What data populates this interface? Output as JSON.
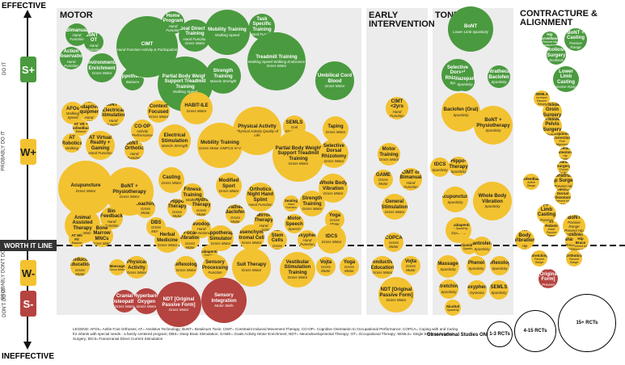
{
  "axis": {
    "top_label": "EFFECTIVE",
    "bottom_label": "INEFFECTIVE"
  },
  "zones": [
    {
      "tag": "S+",
      "label": "DO IT",
      "color": "#4a9a3f"
    },
    {
      "tag": "W+",
      "label": "PROBABLY DO IT",
      "color": "#f3c230"
    },
    {
      "tag": "W-",
      "label": "PROBABLY DON'T DO IT",
      "color": "#f3c230"
    },
    {
      "tag": "S-",
      "label": "DON'T DO IT",
      "color": "#b5433f"
    }
  ],
  "worth_it_line": "WORTH IT LINE",
  "sections": {
    "motor": "MOTOR",
    "early": "EARLY INTERVENTION",
    "tone": "TONE",
    "contracture": "CONTRACTURE & ALIGNMENT"
  },
  "motor_bubbles": [
    {
      "name": "Bimanual",
      "sub": "Hand Function",
      "c": "g"
    },
    {
      "name": "BoNT + OT",
      "sub": "Hand Function",
      "c": "g"
    },
    {
      "name": "Action Observation",
      "sub": "Hand Function",
      "c": "g"
    },
    {
      "name": "Environmental Enrichment",
      "sub": "Gross Motor",
      "c": "g"
    },
    {
      "name": "Hippotherapy",
      "sub": "Balance",
      "c": "g"
    },
    {
      "name": "CIMT",
      "sub": "Hand Function Activity & Participation",
      "c": "g"
    },
    {
      "name": "Home Program",
      "sub": "Hand Function",
      "c": "g"
    },
    {
      "name": "Goal Directed Training",
      "sub": "Hand Function Gross Motor",
      "c": "g"
    },
    {
      "name": "Mobility Training",
      "sub": "Walking Speed",
      "c": "g"
    },
    {
      "name": "Task Specific Training",
      "sub": "Hand Function",
      "c": "g"
    },
    {
      "name": "Partial Body Weight Support Treadmill Training",
      "sub": "Walking Speed",
      "c": "g"
    },
    {
      "name": "Strength Training",
      "sub": "Muscle Strength",
      "c": "g"
    },
    {
      "name": "Treadmill Training",
      "sub": "Walking Speed Walking Endurance Gross Motor",
      "c": "g"
    },
    {
      "name": "Umbilical Cord Blood",
      "sub": "Gross Motor",
      "c": "g"
    },
    {
      "name": "AFOs",
      "sub": "Walking Speed",
      "c": "y"
    },
    {
      "name": "AT Adaptive Equipment",
      "sub": "Hand Function",
      "c": "y"
    },
    {
      "name": "AT VR + Biofeedback",
      "sub": "Balance",
      "c": "y"
    },
    {
      "name": "BoNT + Electrical Stimulation",
      "sub": "Hand Function",
      "c": "y"
    },
    {
      "name": "Context Focused",
      "sub": "Gross Motor",
      "c": "y"
    },
    {
      "name": "HABIT-ILE",
      "sub": "Gross Motor",
      "c": "y"
    },
    {
      "name": "Physical Activity",
      "sub": "Physical Activity Quality of Life",
      "c": "y"
    },
    {
      "name": "SEMLS",
      "sub": "Gait Kinematics",
      "c": "y"
    },
    {
      "name": "Taping",
      "sub": "Gross Motor",
      "c": "y"
    },
    {
      "name": "AT Robotics",
      "sub": "Walking",
      "c": "y"
    },
    {
      "name": "AT Virtual Reality + Gaming",
      "sub": "Hand Function",
      "c": "y"
    },
    {
      "name": "CO-OP",
      "sub": "Activity Performance",
      "c": "y"
    },
    {
      "name": "Electrical Stimulation",
      "sub": "Muscle Strength",
      "c": "y"
    },
    {
      "name": "Mobility Training",
      "sub": "Gross Motor GMFCS IV-V",
      "c": "y"
    },
    {
      "name": "Partial Body Weight Support Treadmill Training",
      "sub": "Gross Motor",
      "c": "y"
    },
    {
      "name": "Selective Dorsal Rhizotomy",
      "sub": "Gross Motor",
      "c": "y"
    },
    {
      "name": "BoNT + Orthotic",
      "sub": "Hand Function",
      "c": "y"
    },
    {
      "name": "Acupuncture",
      "sub": "Gross Motor",
      "c": "y"
    },
    {
      "name": "BoNT + Physiotherapy",
      "sub": "Gross Motor",
      "c": "y"
    },
    {
      "name": "Casting",
      "sub": "Gross Motor",
      "c": "y"
    },
    {
      "name": "Fitness Training",
      "sub": "Walking",
      "c": "y"
    },
    {
      "name": "Modified Sport",
      "sub": "Gross Motor",
      "c": "y"
    },
    {
      "name": "Orthotics Night Hand Splint",
      "sub": "Hand Function",
      "c": "y"
    },
    {
      "name": "Whole Body Vibration",
      "sub": "Gross Motor",
      "c": "y"
    },
    {
      "name": "Coaching",
      "sub": "Gross Motor",
      "c": "y"
    },
    {
      "name": "Hippo Therapy",
      "sub": "Gross Motor",
      "c": "y"
    },
    {
      "name": "Hydro Therapy",
      "sub": "Gross Motor",
      "c": "y"
    },
    {
      "name": "Intrathecal Baclofen",
      "sub": "Gross Motor",
      "c": "y"
    },
    {
      "name": "Seating",
      "sub": "Hand Function",
      "c": "y"
    },
    {
      "name": "Strength Training",
      "sub": "Gross Motor",
      "c": "y"
    },
    {
      "name": "Yoga",
      "sub": "Gross Motor",
      "c": "y"
    },
    {
      "name": "Animal Assisted Therapy",
      "sub": "Gross Motor",
      "c": "y"
    },
    {
      "name": "Bio Feedback",
      "sub": "Hand Function",
      "c": "y"
    },
    {
      "name": "DBS",
      "sub": "Gross Motor",
      "c": "y"
    },
    {
      "name": "Levodopa",
      "sub": "Hand Function",
      "c": "y"
    },
    {
      "name": "Mirror Therapy",
      "sub": "Hand Function",
      "c": "y"
    },
    {
      "name": "Motor Speech",
      "sub": "Speech",
      "c": "y"
    },
    {
      "name": "tDCS",
      "sub": "Gross Motor",
      "c": "y"
    },
    {
      "name": "Herbal Medicine",
      "sub": "Gross Motor",
      "c": "y"
    },
    {
      "name": "Focal Vibration",
      "sub": "Gross Motor",
      "c": "y"
    },
    {
      "name": "AT Wii Fit",
      "sub": "Balance",
      "c": "y"
    },
    {
      "name": "Bone Marrow MNCs",
      "sub": "Gross Motor",
      "c": "y"
    },
    {
      "name": "Hippotherapy Simulator",
      "sub": "Gross Motor",
      "c": "y"
    },
    {
      "name": "Mesenchymal Stromal Cells",
      "sub": "Gross Motor",
      "c": "y"
    },
    {
      "name": "Neural Stem Cells",
      "sub": "Gross Motor",
      "c": "y"
    },
    {
      "name": "Trihexyphenidyl",
      "sub": "Hand Function",
      "c": "y"
    },
    {
      "name": "Gabapentin",
      "sub": "Function",
      "c": "y"
    },
    {
      "name": "Conductive Education",
      "sub": "Gross Motor",
      "c": "y"
    },
    {
      "name": "Massage",
      "sub": "Gross Motor",
      "c": "y"
    },
    {
      "name": "Physical Activity",
      "sub": "Gross Motor",
      "c": "y"
    },
    {
      "name": "Reflexology",
      "sub": "Gross Motor",
      "c": "y"
    },
    {
      "name": "Sensory Processing",
      "sub": "Function",
      "c": "y"
    },
    {
      "name": "Suit Therapy",
      "sub": "Gross Motor",
      "c": "y"
    },
    {
      "name": "Vestibular Stimulation Training",
      "sub": "Gross Motor",
      "c": "y"
    },
    {
      "name": "Vojta",
      "sub": "Gross Motor",
      "c": "y"
    },
    {
      "name": "Yoga",
      "sub": "Gross Motor",
      "c": "y"
    },
    {
      "name": "Cranial Osteopathy",
      "sub": "Gross Motor",
      "c": "r"
    },
    {
      "name": "Hyperbaric Oxygen",
      "sub": "Gross Motor",
      "c": "r"
    },
    {
      "name": "NDT [Original Passive Form]",
      "sub": "Gross Motor",
      "c": "r"
    },
    {
      "name": "Sensory Integration",
      "sub": "Motor Skills",
      "c": "r"
    }
  ],
  "early_bubbles": [
    {
      "name": "CIMT <2yrs",
      "sub": "Hand Function",
      "c": "y"
    },
    {
      "name": "Motor Training",
      "sub": "Gross Motor",
      "c": "y"
    },
    {
      "name": "GAME",
      "sub": "Gross Motor",
      "c": "y"
    },
    {
      "name": "CIMT or Bimanual",
      "sub": "Hand Function",
      "c": "y"
    },
    {
      "name": "General Stimulation",
      "sub": "Gross Motor",
      "c": "y"
    },
    {
      "name": "COPCA",
      "sub": "Gross Motor",
      "c": "y"
    },
    {
      "name": "Conductive Education",
      "sub": "Gross Motor",
      "c": "y"
    },
    {
      "name": "Vojta",
      "sub": "Gross Motor",
      "c": "y"
    },
    {
      "name": "NDT [Original Passive Form]",
      "sub": "Gross Motor",
      "c": "y"
    }
  ],
  "tone_bubbles": [
    {
      "name": "BoNT",
      "sub": "Lower Limb Spasticity",
      "c": "g"
    },
    {
      "name": "Selective Dorsal Rhizotomy",
      "sub": "Spasticity",
      "c": "g"
    },
    {
      "name": "Diazepam",
      "sub": "Spasticity",
      "c": "g"
    },
    {
      "name": "Intrathecal Baclofen",
      "sub": "Spasticity",
      "c": "g"
    },
    {
      "name": "Baclofen (Oral)",
      "sub": "Spasticity",
      "c": "y"
    },
    {
      "name": "BoNT + Physiotherapy",
      "sub": "Spasticity",
      "c": "y"
    },
    {
      "name": "tDCS",
      "sub": "Spasticity",
      "c": "y"
    },
    {
      "name": "Hippo-Therapy",
      "sub": "Spasticity",
      "c": "y"
    },
    {
      "name": "Acupuncture",
      "sub": "Spasticity",
      "c": "y"
    },
    {
      "name": "Whole Body Vibration",
      "sub": "Spasticity",
      "c": "y"
    },
    {
      "name": "DBS",
      "sub": "Dystonia",
      "c": "y"
    },
    {
      "name": "Gabapentin",
      "sub": "Spasticity",
      "c": "y"
    },
    {
      "name": "Tizanidine",
      "sub": "Spasticity",
      "c": "y"
    },
    {
      "name": "Dantrolene",
      "sub": "Spasticity",
      "c": "y"
    },
    {
      "name": "Massage",
      "sub": "Spasticity",
      "c": "y"
    },
    {
      "name": "Phenol",
      "sub": "Spasticity",
      "c": "y"
    },
    {
      "name": "Reflexology",
      "sub": "Spasticity",
      "c": "y"
    },
    {
      "name": "Stretching",
      "sub": "Spasticity",
      "c": "y"
    },
    {
      "name": "Trihexyphenidyl",
      "sub": "Dystonia",
      "c": "y"
    },
    {
      "name": "SEMLS",
      "sub": "Spasticity",
      "c": "y"
    },
    {
      "name": "Alcohol",
      "sub": "Spasticity",
      "c": "y"
    }
  ],
  "contracture_bubbles": [
    {
      "name": "Hip Surveillance",
      "sub": "Prevent Hip Displacement",
      "c": "g"
    },
    {
      "name": "BoNT + Casting",
      "sub": "Passive Range",
      "c": "g"
    },
    {
      "name": "Scoliosis Surgery",
      "sub": "Scoliosis",
      "c": "g"
    },
    {
      "name": "Lower Limb Casting",
      "sub": "Passive Range",
      "c": "g"
    },
    {
      "name": "SEMLS",
      "sub": "Increase Passive Range",
      "c": "y"
    },
    {
      "name": "Soft Tissue Groin Surgery",
      "sub": "Prevent Hip Displacement",
      "c": "y"
    },
    {
      "name": "Soft Tissue Pelvis Surgery",
      "sub": "Prevent Hip Displacement",
      "c": "y"
    },
    {
      "name": "Equinus Correction",
      "sub": "Foot Alignment",
      "c": "y"
    },
    {
      "name": "Femoral Osteotomy",
      "sub": "Hip Rotation",
      "c": "y"
    },
    {
      "name": "Hand Surgery",
      "sub": "Thumb Position",
      "c": "y"
    },
    {
      "name": "Biofeedback",
      "sub": "Active Range",
      "c": "y"
    },
    {
      "name": "Reconstructive Hip Surgery",
      "sub": "Prevent Hip Displacement",
      "c": "y"
    },
    {
      "name": "Selective Dorsal Rhizotomy",
      "sub": "Prevent Hip Displacement",
      "c": "y"
    },
    {
      "name": "Upper Limb Casting",
      "sub": "Passive Range",
      "c": "y"
    },
    {
      "name": "AT Robots",
      "sub": "Ankle Passive Range",
      "c": "y"
    },
    {
      "name": "BoNT",
      "sub": "Passive Range Prevent Hip Displacement",
      "c": "y"
    },
    {
      "name": "Postural Management",
      "sub": "Prevent Hip Displacement",
      "c": "y"
    },
    {
      "name": "Whole Body Vibration",
      "sub": "Hip Displacement",
      "c": "y"
    },
    {
      "name": "BoNT + Hip Brace",
      "sub": "Prevent Hip Displacement",
      "c": "y"
    },
    {
      "name": "Stretching",
      "sub": "Passive Range",
      "c": "y"
    },
    {
      "name": "Orthotics",
      "sub": "Passive Range",
      "c": "y"
    },
    {
      "name": "NDT [Original Form]",
      "sub": "Prevent Contractures",
      "c": "r"
    }
  ],
  "key": {
    "observational": "Observational Studies ONLY",
    "rct_small": "1-3 RCTs",
    "rct_mid": "4-15 RCTs",
    "rct_large": "15+ RCTs"
  },
  "legend_text": "LEGEND: AFOs= Ankle Foot Orthoses; AT= Assistive Technology; BoNT= Botulinum Toxin; CIMT= Constraint Induced Movement Therapy; CO-OP= Cognitive Orientation to Occupational Performance; COPCA= Coping with and Caring for infants with special needs - a family centered program; DBS= Deep Brain Stimulation; GAME= Goals Activity Motor Enrichment; NDT= Neurodevelopmental Therapy; OT= Occupational Therapy; SEMLS= Single Event Multi Level Surgery; tDCS=Transcranial Direct Current Stimulation"
}
